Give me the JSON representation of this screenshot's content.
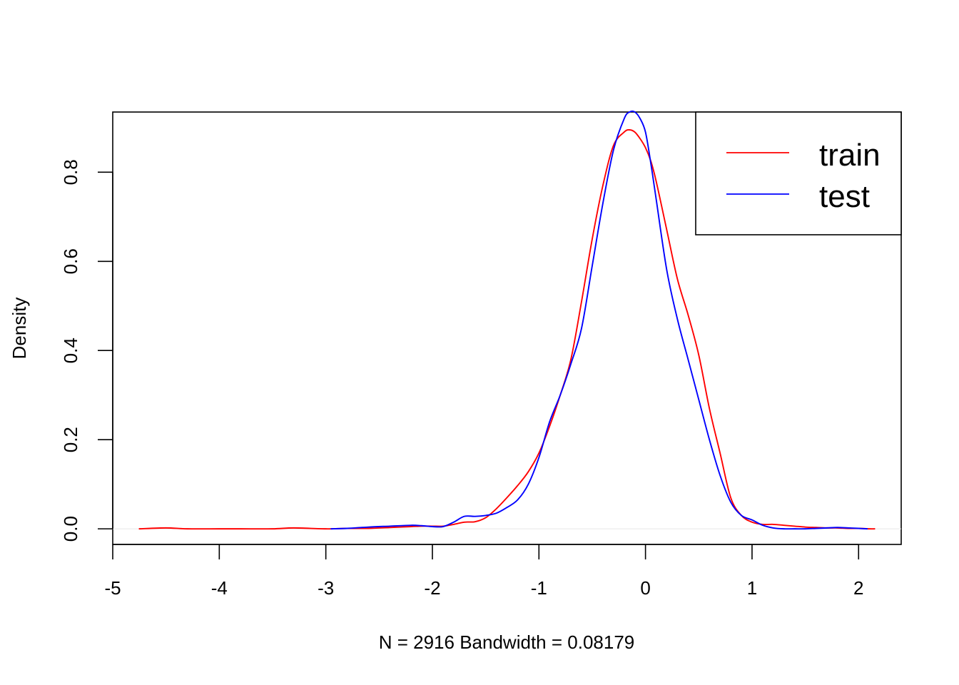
{
  "chart_data": {
    "type": "line",
    "title": "",
    "xlabel": "N = 2916   Bandwidth = 0.08179",
    "ylabel": "Density",
    "xlim": [
      -5,
      2.4
    ],
    "ylim": [
      -0.035,
      0.935
    ],
    "x_ticks": [
      "-5",
      "-4",
      "-3",
      "-2",
      "-1",
      "0",
      "1",
      "2"
    ],
    "x_tick_values": [
      -5,
      -4,
      -3,
      -2,
      -1,
      0,
      1,
      2
    ],
    "y_ticks": [
      "0.0",
      "0.2",
      "0.4",
      "0.6",
      "0.8"
    ],
    "y_tick_values": [
      0,
      0.2,
      0.4,
      0.6,
      0.8
    ],
    "grid": false,
    "legend_position": "top-right",
    "series": [
      {
        "name": "train",
        "color": "#ff0000",
        "x": [
          -4.75,
          -4.5,
          -4.3,
          -4.0,
          -3.8,
          -3.5,
          -3.3,
          -3.0,
          -2.8,
          -2.6,
          -2.4,
          -2.2,
          -2.1,
          -2.0,
          -1.9,
          -1.8,
          -1.7,
          -1.6,
          -1.5,
          -1.4,
          -1.3,
          -1.2,
          -1.1,
          -1.0,
          -0.9,
          -0.8,
          -0.7,
          -0.6,
          -0.5,
          -0.4,
          -0.3,
          -0.2,
          -0.15,
          -0.1,
          -0.05,
          0.0,
          0.05,
          0.1,
          0.2,
          0.3,
          0.4,
          0.5,
          0.6,
          0.7,
          0.8,
          0.9,
          1.0,
          1.1,
          1.2,
          1.3,
          1.4,
          1.5,
          1.6,
          1.7,
          1.8,
          1.9,
          2.0,
          2.1,
          2.15
        ],
        "y": [
          0.0,
          0.002,
          0.0,
          0.0,
          0.0,
          0.0,
          0.002,
          0.0,
          0.001,
          0.001,
          0.003,
          0.005,
          0.006,
          0.006,
          0.006,
          0.01,
          0.015,
          0.016,
          0.025,
          0.045,
          0.07,
          0.097,
          0.128,
          0.17,
          0.23,
          0.3,
          0.38,
          0.51,
          0.65,
          0.77,
          0.86,
          0.89,
          0.895,
          0.89,
          0.875,
          0.855,
          0.825,
          0.78,
          0.67,
          0.56,
          0.48,
          0.39,
          0.27,
          0.17,
          0.07,
          0.03,
          0.015,
          0.01,
          0.01,
          0.008,
          0.006,
          0.004,
          0.003,
          0.002,
          0.002,
          0.001,
          0.001,
          0.0,
          0.0
        ]
      },
      {
        "name": "test",
        "color": "#0000ff",
        "x": [
          -2.95,
          -2.8,
          -2.6,
          -2.4,
          -2.2,
          -2.1,
          -2.0,
          -1.9,
          -1.8,
          -1.7,
          -1.6,
          -1.5,
          -1.4,
          -1.3,
          -1.2,
          -1.1,
          -1.0,
          -0.9,
          -0.8,
          -0.7,
          -0.6,
          -0.5,
          -0.4,
          -0.3,
          -0.2,
          -0.15,
          -0.1,
          -0.05,
          0.0,
          0.05,
          0.1,
          0.2,
          0.3,
          0.4,
          0.5,
          0.6,
          0.7,
          0.8,
          0.9,
          1.0,
          1.1,
          1.2,
          1.3,
          1.4,
          1.5,
          1.6,
          1.7,
          1.8,
          1.9,
          2.0,
          2.08
        ],
        "y": [
          0.0,
          0.001,
          0.004,
          0.006,
          0.008,
          0.007,
          0.005,
          0.005,
          0.015,
          0.028,
          0.028,
          0.03,
          0.035,
          0.048,
          0.065,
          0.1,
          0.16,
          0.24,
          0.3,
          0.37,
          0.45,
          0.59,
          0.73,
          0.85,
          0.92,
          0.935,
          0.935,
          0.92,
          0.89,
          0.82,
          0.74,
          0.58,
          0.47,
          0.38,
          0.29,
          0.2,
          0.12,
          0.06,
          0.03,
          0.02,
          0.008,
          0.002,
          0.0,
          0.0,
          0.0,
          0.001,
          0.002,
          0.003,
          0.002,
          0.001,
          0.0
        ]
      }
    ]
  }
}
